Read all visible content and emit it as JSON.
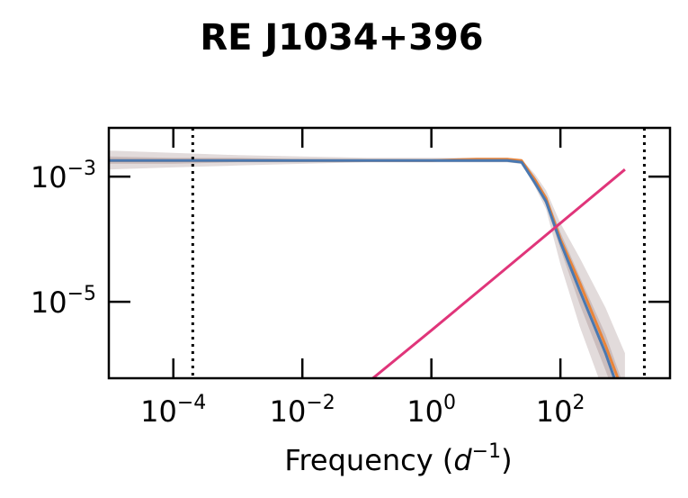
{
  "chart_data": {
    "type": "line",
    "title": "RE J1034+396",
    "xlabel": "Frequency (d⁻¹)",
    "ylabel": "",
    "xscale": "log",
    "yscale": "log",
    "xlim": [
      1e-05,
      5000
    ],
    "ylim": [
      6e-07,
      0.006
    ],
    "x_ticks": [
      {
        "value": 0.0001,
        "base": "10",
        "exp": "−4"
      },
      {
        "value": 0.01,
        "base": "10",
        "exp": "−2"
      },
      {
        "value": 1,
        "base": "10",
        "exp": "0"
      },
      {
        "value": 100,
        "base": "10",
        "exp": "2"
      }
    ],
    "y_ticks": [
      {
        "value": 0.001,
        "base": "10",
        "exp": "−3"
      },
      {
        "value": 1e-05,
        "base": "10",
        "exp": "−5"
      }
    ],
    "vertical_lines": [
      0.0002,
      2000
    ],
    "series": [
      {
        "color": "#e8843a",
        "x": [
          1e-05,
          0.0001,
          0.001,
          0.01,
          0.1,
          1,
          5,
          15,
          25,
          40,
          60,
          100,
          200,
          500,
          1000
        ],
        "y": [
          0.0018,
          0.0018,
          0.0018,
          0.0018,
          0.0018,
          0.0018,
          0.0019,
          0.0019,
          0.0018,
          0.0009,
          0.00045,
          0.0001,
          2e-05,
          2e-06,
          3e-07
        ]
      },
      {
        "color": "#4a78b0",
        "x": [
          1e-05,
          0.0001,
          0.001,
          0.01,
          0.1,
          1,
          5,
          15,
          25,
          40,
          60,
          100,
          200,
          500,
          1000
        ],
        "y": [
          0.0018,
          0.0018,
          0.0018,
          0.0018,
          0.0018,
          0.0018,
          0.0018,
          0.0018,
          0.0017,
          0.0008,
          0.0004,
          9e-05,
          1.5e-05,
          1.5e-06,
          2e-07
        ]
      },
      {
        "color": "#e0357a",
        "x": [
          0.1,
          1,
          10,
          100,
          1000
        ],
        "y": [
          5e-07,
          3.5e-06,
          2.5e-05,
          0.00018,
          0.0013
        ]
      }
    ],
    "bands": [
      {
        "color": "#a08888",
        "opacity": 0.3,
        "x": [
          1e-05,
          0.0001,
          0.001,
          0.01,
          0.1,
          1,
          5,
          15,
          25,
          40,
          60,
          100,
          200,
          500,
          1000
        ],
        "lower": [
          0.0013,
          0.0014,
          0.0015,
          0.0016,
          0.0017,
          0.0017,
          0.0017,
          0.0017,
          0.0016,
          0.0007,
          0.0003,
          4e-05,
          4e-06,
          3e-07,
          1e-07
        ],
        "upper": [
          0.0026,
          0.0024,
          0.0022,
          0.0021,
          0.002,
          0.002,
          0.002,
          0.002,
          0.0019,
          0.0011,
          0.0006,
          0.00018,
          5e-05,
          8e-06,
          1.5e-06
        ]
      },
      {
        "color": "#a08888",
        "opacity": 0.35,
        "x": [
          1e-05,
          0.0001,
          0.001,
          0.01,
          0.1,
          1,
          5,
          15,
          25,
          40,
          60,
          100,
          200,
          500,
          1000
        ],
        "lower": [
          0.0016,
          0.0016,
          0.0017,
          0.0017,
          0.0017,
          0.0017,
          0.0017,
          0.0017,
          0.0016,
          0.00075,
          0.00035,
          7e-05,
          9e-06,
          8e-07,
          1.2e-07
        ],
        "upper": [
          0.0021,
          0.002,
          0.002,
          0.0019,
          0.0019,
          0.0019,
          0.0019,
          0.0019,
          0.0018,
          0.001,
          0.0005,
          0.00013,
          2.5e-05,
          3e-06,
          4e-07
        ]
      }
    ]
  }
}
